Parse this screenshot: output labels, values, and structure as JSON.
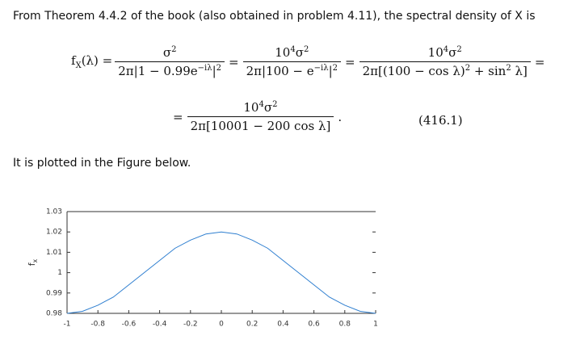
{
  "paragraph": "From Theorem 4.4.2 of the book (also obtained in problem 4.11), the spectral density of X is",
  "eq": {
    "lhs": [
      "f",
      "X",
      "(λ) ="
    ],
    "f1": {
      "num": [
        "σ",
        "2"
      ],
      "den": [
        "2π|1 − 0.99e",
        "−iλ",
        "|",
        "2"
      ]
    },
    "eq1": "=",
    "f2": {
      "num": [
        "10",
        "4",
        "σ",
        "2"
      ],
      "den": [
        "2π|100 − e",
        "−iλ",
        "|",
        "2"
      ]
    },
    "eq2": "=",
    "f3": {
      "num": [
        "10",
        "4",
        "σ",
        "2"
      ],
      "den": [
        "2π[(100 − cos λ)",
        "2",
        " + sin",
        "2",
        " λ]"
      ]
    },
    "eq3": "=",
    "eq4": "=",
    "f4": {
      "num": [
        "10",
        "4",
        "σ",
        "2"
      ],
      "den": [
        "2π[10001 − 200 cos λ]"
      ]
    },
    "end": ".",
    "number": "(416.1)"
  },
  "caption": "It is plotted in the Figure below.",
  "chart_data": {
    "type": "line",
    "ylabel": {
      "main": "f",
      "sub": "x"
    },
    "x": [
      -1,
      -0.9,
      -0.8,
      -0.7,
      -0.6,
      -0.5,
      -0.4,
      -0.3,
      -0.2,
      -0.1,
      0,
      0.1,
      0.2,
      0.3,
      0.4,
      0.5,
      0.6,
      0.7,
      0.8,
      0.9,
      1
    ],
    "series": [
      {
        "color": "#2f7fd0",
        "values": [
          0.98,
          0.981,
          0.984,
          0.988,
          0.994,
          1.0,
          1.006,
          1.012,
          1.016,
          1.019,
          1.02,
          1.019,
          1.016,
          1.012,
          1.006,
          1.0,
          0.994,
          0.988,
          0.984,
          0.981,
          0.98
        ]
      }
    ],
    "xlim": [
      -1,
      1
    ],
    "ylim": [
      0.98,
      1.03
    ],
    "xticks": [
      -1,
      -0.8,
      -0.6,
      -0.4,
      -0.2,
      0,
      0.2,
      0.4,
      0.6,
      0.8,
      1
    ],
    "yticks": [
      0.98,
      0.99,
      1,
      1.01,
      1.02,
      1.03
    ]
  }
}
